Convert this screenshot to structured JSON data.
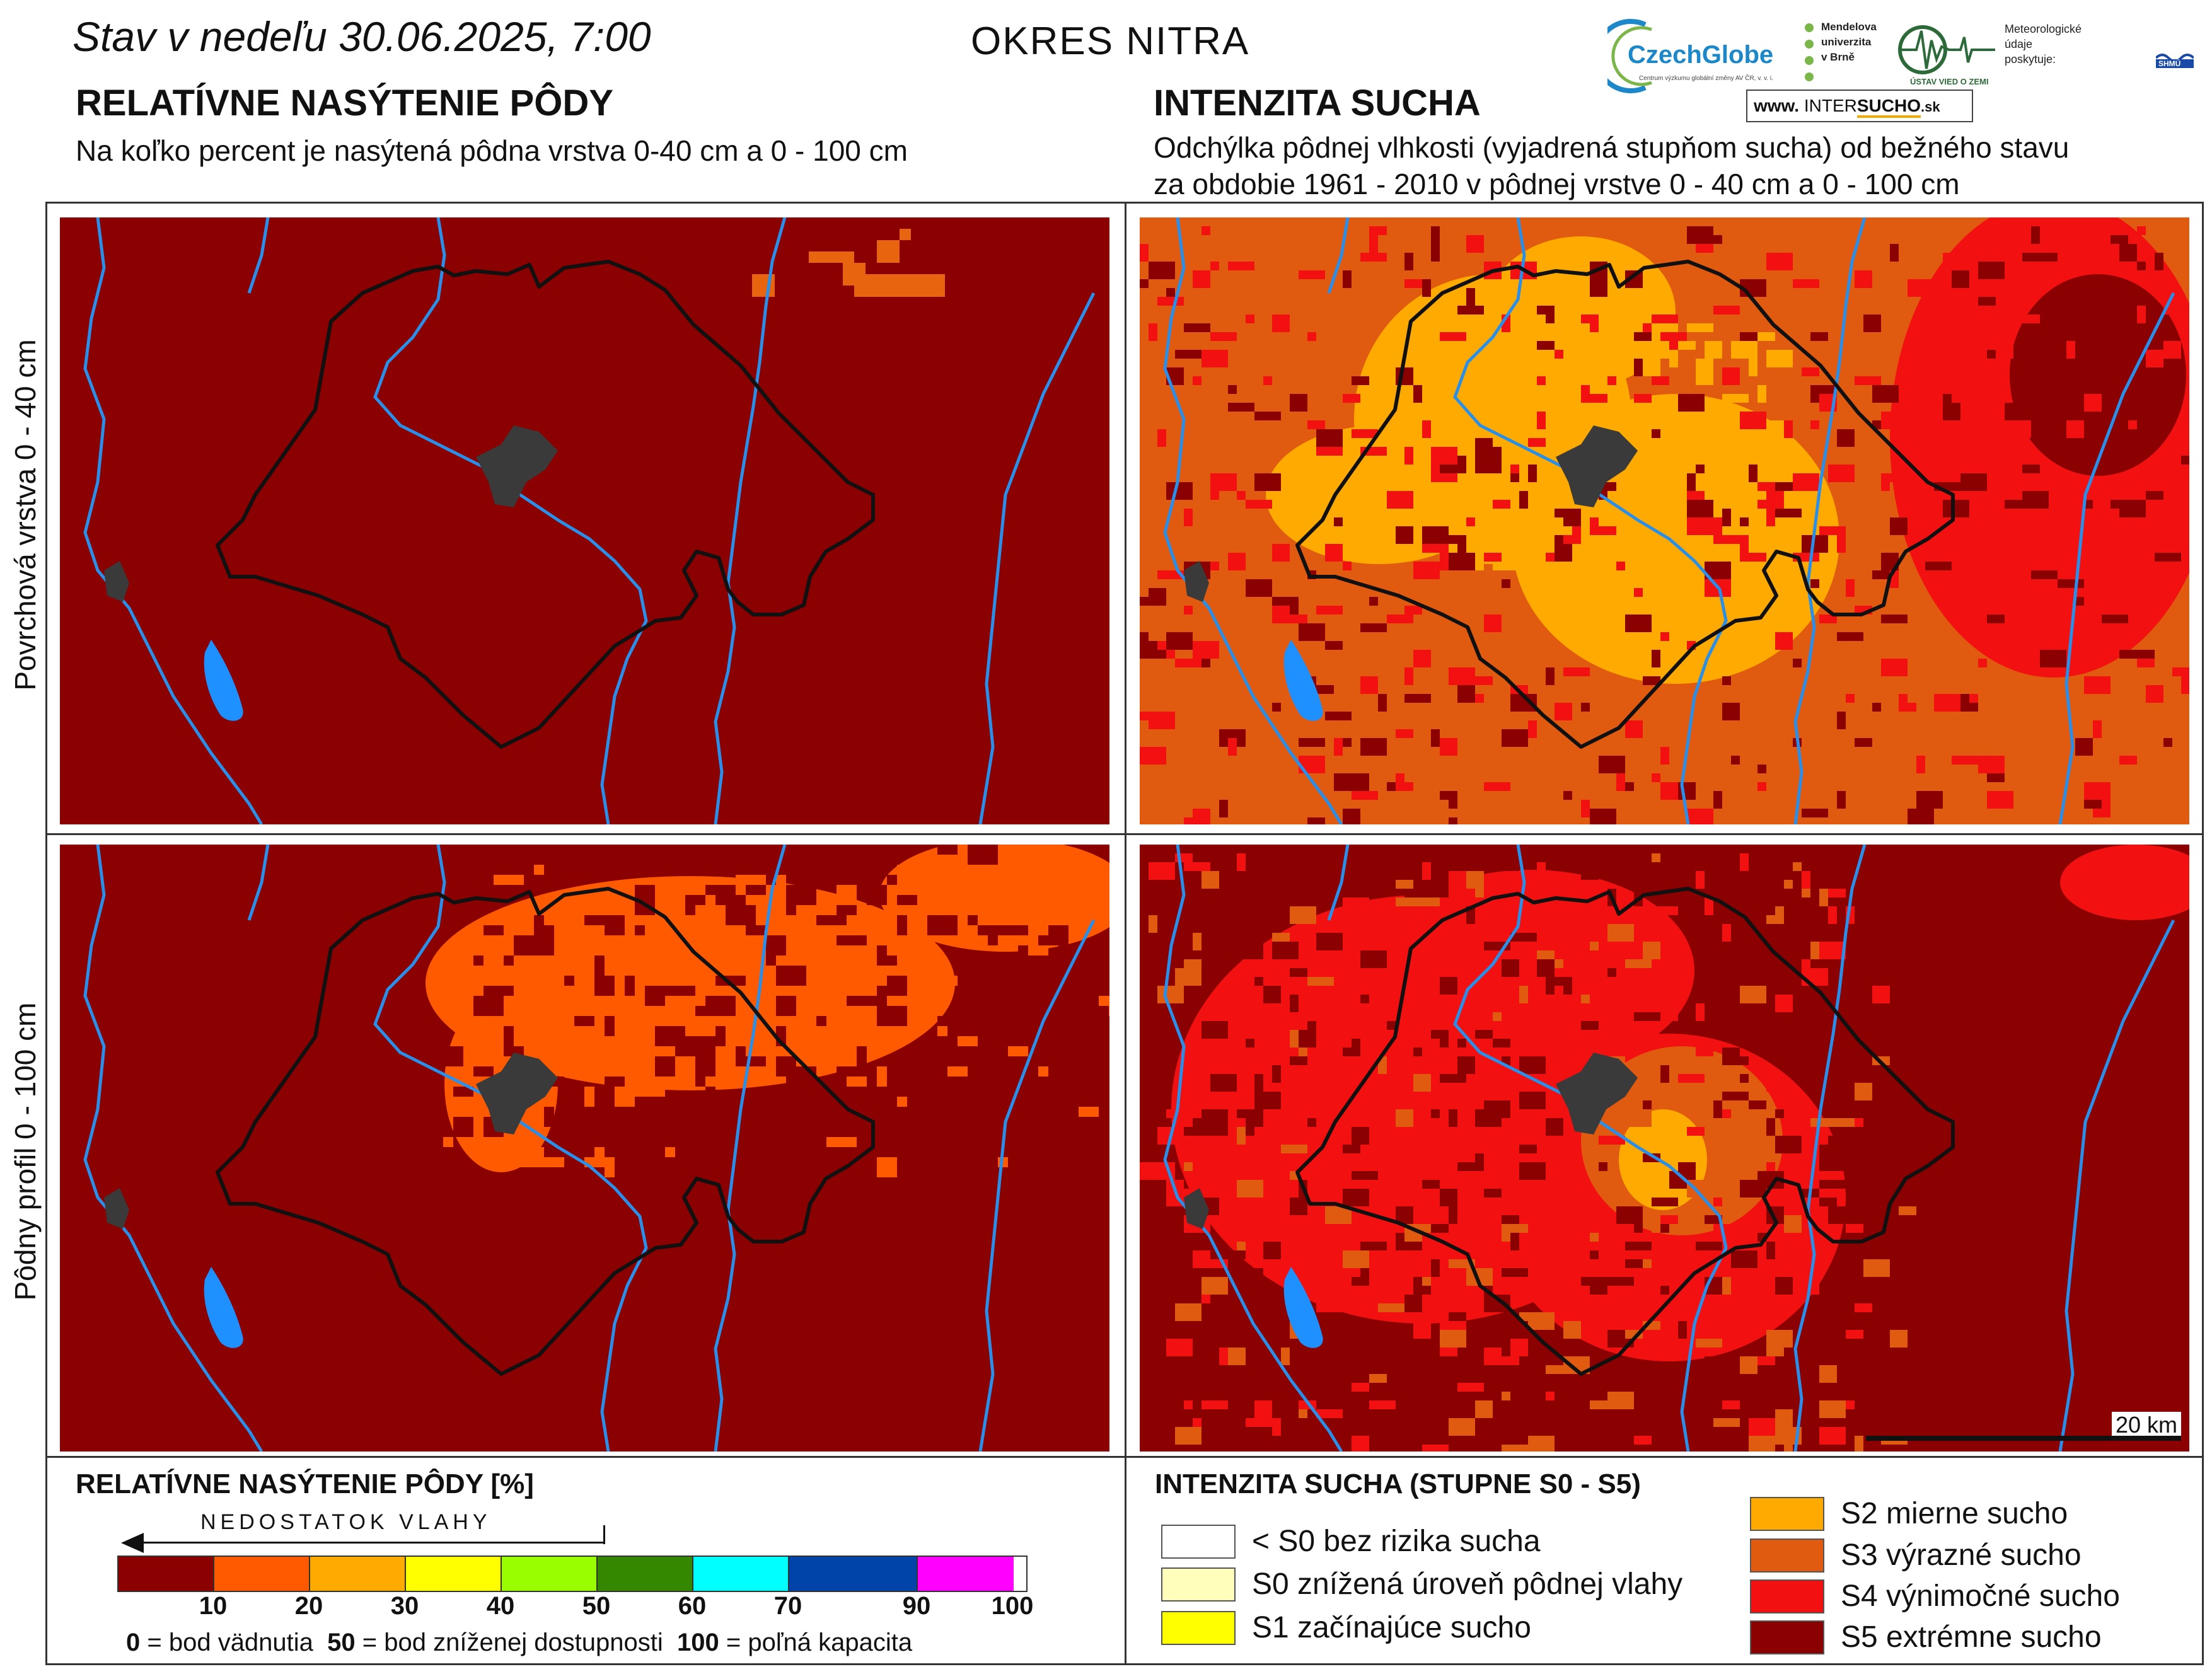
{
  "header": {
    "date_line": "Stav v nedeľu 30.06.2025, 7:00",
    "district": "OKRES  NITRA",
    "left_heading": "RELATÍVNE NASÝTENIE PÔDY",
    "left_sub": "Na koľko percent je nasýtená pôdna vrstva 0-40 cm a 0 - 100 cm",
    "right_heading": "INTENZITA SUCHA",
    "right_sub_1": "Odchýlka pôdnej vlhkosti (vyjadrená stupňom sucha) od bežného stavu",
    "right_sub_2": "za obdobie 1961 - 2010 v pôdnej vrstve 0 - 40 cm a 0 - 100 cm"
  },
  "logos": {
    "czechglobe": "CzechGlobe",
    "czechglobe_sub": "Centrum výzkumu globální změny AV ČR, v. v. i.",
    "mendel_1": "Mendelova",
    "mendel_2": "univerzita",
    "mendel_3": "v Brně",
    "uvz": "ÚSTAV VIED O ZEMI",
    "meteo": "Meteorologické\núdaje\nposkytuje:",
    "shmu": "SHMÚ",
    "intersucho_prefix": "www.",
    "intersucho_a": "INTER",
    "intersucho_b": "SUCHO",
    "intersucho_c": ".sk"
  },
  "rows": {
    "top_label": "Povrchová vrstva 0 - 40 cm",
    "bottom_label": "Pôdny profil 0 - 100 cm"
  },
  "scalebar": {
    "label": "20 km"
  },
  "colors": {
    "s5": "#8b0000",
    "s4": "#f21010",
    "s3": "#e05a10",
    "s2": "#ffaa00",
    "s1": "#ffff00",
    "s0": "#ffffbb",
    "none": "#ffffff",
    "river": "#2a8fe8",
    "lake": "#1e90ff",
    "town": "#3a3a3a",
    "boundary": "#111111"
  },
  "legend_saturation": {
    "title": "RELATÍVNE NASÝTENIE PÔDY [%]",
    "arrow_label": "NEDOSTATOK VLAHY",
    "segments": [
      {
        "color": "#8b0000",
        "from": 0,
        "to": 10
      },
      {
        "color": "#ff5a00",
        "from": 10,
        "to": 20
      },
      {
        "color": "#ffaa00",
        "from": 20,
        "to": 30
      },
      {
        "color": "#ffff00",
        "from": 30,
        "to": 40
      },
      {
        "color": "#99ff00",
        "from": 40,
        "to": 50
      },
      {
        "color": "#338800",
        "from": 50,
        "to": 60
      },
      {
        "color": "#00ffff",
        "from": 60,
        "to": 70
      },
      {
        "color": "#0044aa",
        "from": 70,
        "to": 90
      },
      {
        "color": "#ff00ff",
        "from": 90,
        "to": 100
      }
    ],
    "ticks": [
      "10",
      "20",
      "30",
      "40",
      "50",
      "60",
      "70",
      "90",
      "100"
    ],
    "note_0": "0",
    "note_0_text": " = bod vädnutia  ",
    "note_50": "50",
    "note_50_text": " = bod zníženej dostupnosti  ",
    "note_100": "100",
    "note_100_text": " = poľná kapacita"
  },
  "legend_drought": {
    "title": "INTENZITA SUCHA (STUPNE S0 - S5)",
    "items": [
      {
        "label": "< S0 bez rizika sucha",
        "color": "#ffffff"
      },
      {
        "label": "S0 znížená úroveň pôdnej vlahy",
        "color": "#ffffbb"
      },
      {
        "label": "S1 začínajúce sucho",
        "color": "#ffff00"
      },
      {
        "label": "S2 mierne sucho",
        "color": "#ffaa00"
      },
      {
        "label": "S3 výrazné sucho",
        "color": "#e05a10"
      },
      {
        "label": "S4 výnimočné sucho",
        "color": "#f21010"
      },
      {
        "label": "S5 extrémne sucho",
        "color": "#8b0000"
      }
    ]
  }
}
